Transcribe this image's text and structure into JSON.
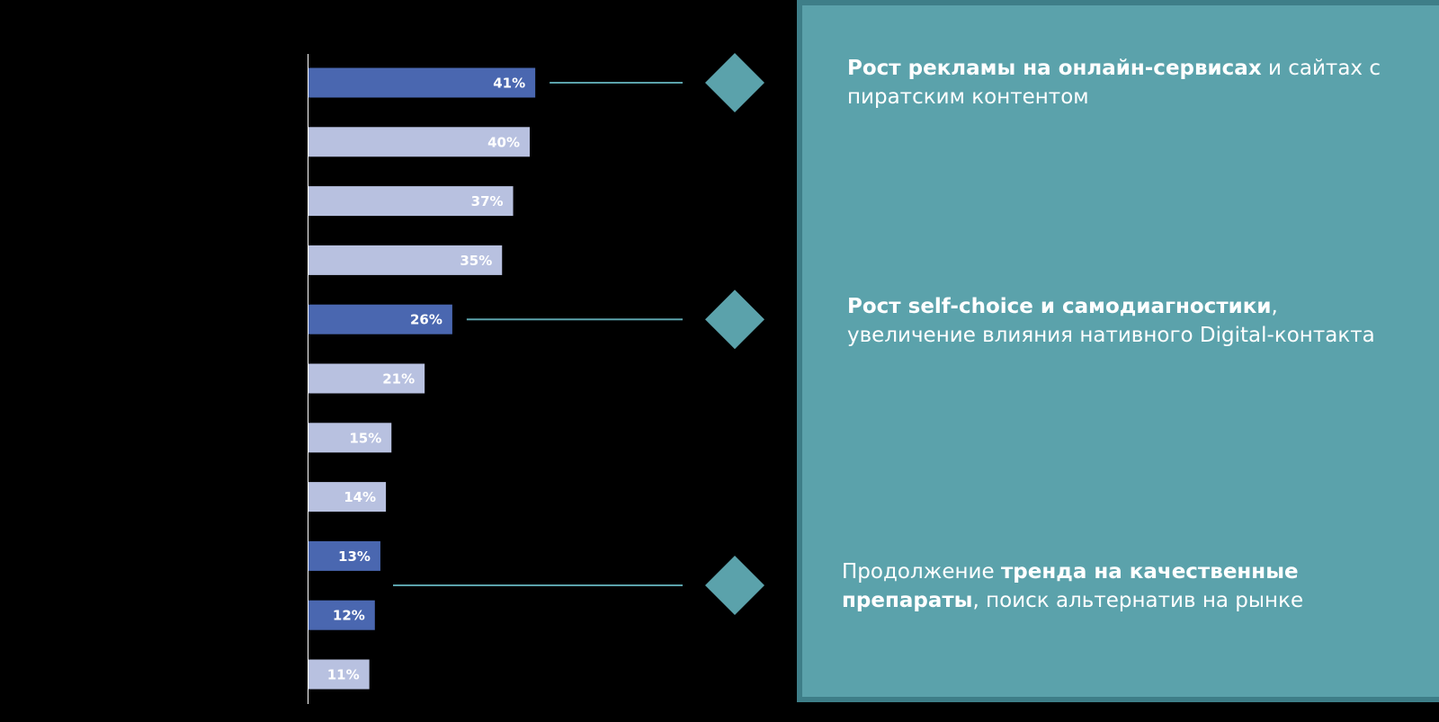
{
  "colors": {
    "background": "#000000",
    "bar_highlight": "#4a67b0",
    "bar_normal": "#b8c1e0",
    "panel": "#5ba2ab",
    "panel_border": "#3e7e88",
    "connector": "#5ba2ab"
  },
  "chart_data": {
    "type": "bar",
    "orientation": "horizontal",
    "categories": [],
    "values": [
      41,
      40,
      37,
      35,
      26,
      21,
      15,
      14,
      13,
      12,
      11
    ],
    "labels": [
      "41%",
      "40%",
      "37%",
      "35%",
      "26%",
      "21%",
      "15%",
      "14%",
      "13%",
      "12%",
      "11%"
    ],
    "highlighted": [
      0,
      4,
      8,
      9
    ],
    "xlim": [
      0,
      50
    ],
    "unit": "%",
    "grid": false,
    "legend": "none"
  },
  "callouts": [
    {
      "bold": "Рост рекламы на онлайн-сервисах",
      "rest": " и сайтах с пиратским контентом",
      "bar_index": 0,
      "bold_first": true
    },
    {
      "bold": "Рост self-choice и самодиагностики",
      "rest": ", увеличение влияния нативного Digital-контакта",
      "bar_index": 4,
      "bold_first": true
    },
    {
      "pre": "Продолжение ",
      "bold": "тренда на качественные препараты",
      "rest": ", поиск альтернатив на рынке",
      "bar_index": 8,
      "bold_first": false
    }
  ]
}
